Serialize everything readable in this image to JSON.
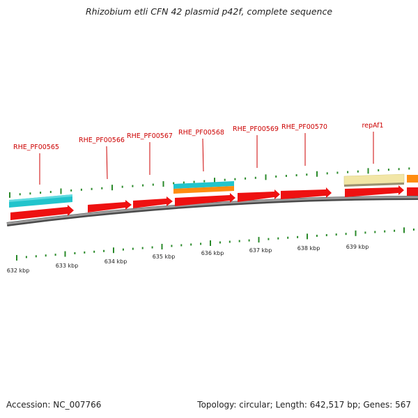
{
  "title": "Rhizobium etli CFN 42 plasmid p42f, complete sequence",
  "footer": {
    "accession": "Accession: NC_007766",
    "summary": "Topology: circular; Length: 642,517 bp; Genes: 567"
  },
  "gene_labels": [
    "RHE_PF00565",
    "RHE_PF00566",
    "RHE_PF00567",
    "RHE_PF00568",
    "RHE_PF00569",
    "RHE_PF00570",
    "repAf1"
  ],
  "scale_labels": [
    "632 kbp",
    "633 kbp",
    "634 kbp",
    "635 kbp",
    "636 kbp",
    "637 kbp",
    "638 kbp",
    "639 kbp"
  ],
  "colors": {
    "gene": "#ee1111",
    "cyan_feature": "#22c4cc",
    "orange_feature": "#ff8c10",
    "tan_feature": "#f2e6a6",
    "label": "#cc0000",
    "tick": "#2a8a2a",
    "backbone": "#888888"
  }
}
